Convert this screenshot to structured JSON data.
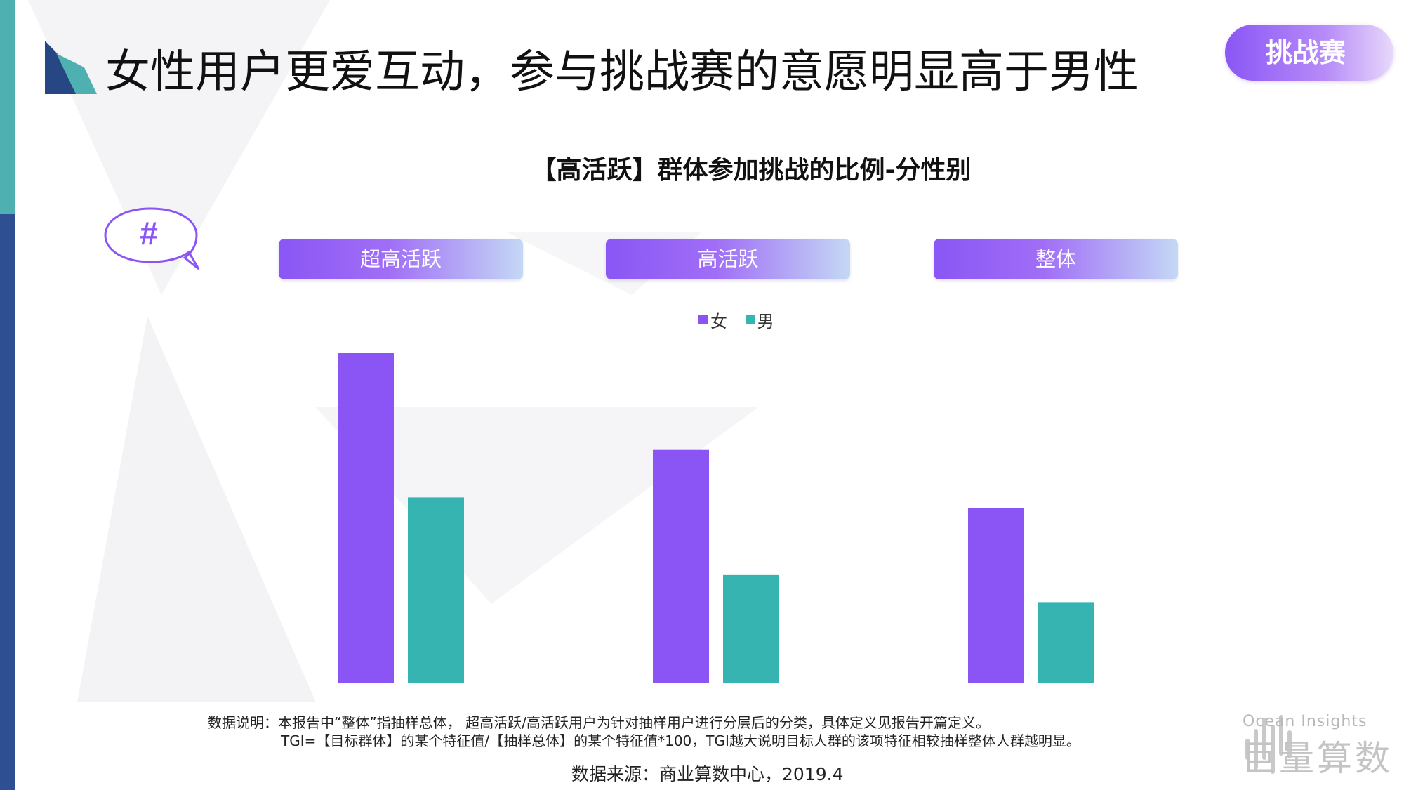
{
  "header": {
    "title": "女性用户更爱互动，参与挑战赛的意愿明显高于男性",
    "tag": "挑战赛"
  },
  "hash_bubble": {
    "symbol": "#"
  },
  "groups": [
    "超高活跃",
    "高活跃",
    "整体"
  ],
  "colors": {
    "female": "#8b55f6",
    "male": "#36b4b1",
    "accent_teal": "#4fb0b2",
    "accent_navy": "#2f4f93"
  },
  "chart_data": {
    "type": "bar",
    "title": "【高活跃】群体参加挑战的比例-分性别",
    "categories": [
      "超高活跃",
      "高活跃",
      "整体"
    ],
    "series": [
      {
        "name": "女",
        "values": [
          1.0,
          0.707,
          0.531
        ]
      },
      {
        "name": "男",
        "values": [
          0.563,
          0.328,
          0.246
        ]
      }
    ],
    "ylim": [
      0,
      1.0
    ],
    "grid": false,
    "legend": "top-center",
    "xlabel": "",
    "ylabel": ""
  },
  "footer": {
    "note_line1": "数据说明：本报告中“整体”指抽样总体， 超高活跃/高活跃用户为针对抽样用户进行分层后的分类，具体定义见报告开篇定义。",
    "note_line2": "TGI=【目标群体】的某个特征值/【抽样总体】的某个特征值*100，TGI越大说明目标人群的该项特征相较抽样整体人群越明显。",
    "source": "数据来源：商业算数中心，2019.4"
  },
  "brand": {
    "en": "Ocean Insights",
    "cn": "巨量算数"
  }
}
